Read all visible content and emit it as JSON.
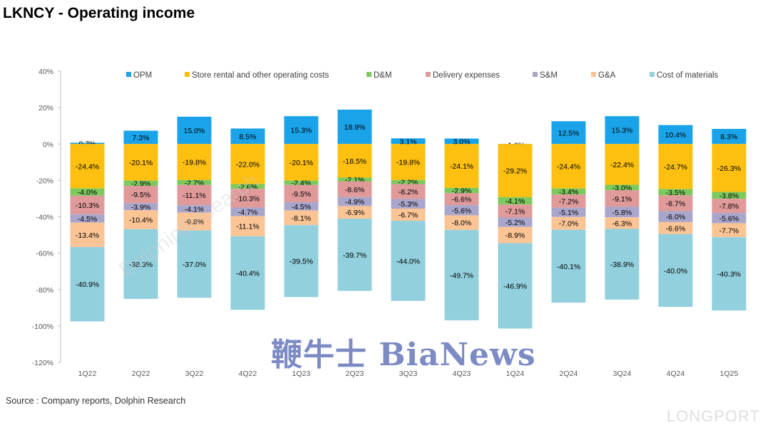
{
  "title": "LKNCY - Operating income",
  "source": "Source : Company reports, Dolphin Research",
  "watermarks": {
    "bianews": "鞭牛士 BiaNews",
    "dolphin": "DolphinResearch",
    "longport": "LONGPORT"
  },
  "chart_data": {
    "type": "bar",
    "stacked": true,
    "categories": [
      "1Q22",
      "2Q22",
      "3Q22",
      "4Q22",
      "1Q23",
      "2Q23",
      "3Q23",
      "4Q23",
      "1Q24",
      "2Q24",
      "3Q24",
      "4Q24",
      "1Q25"
    ],
    "ylim": [
      -120,
      40
    ],
    "yticks": [
      40,
      20,
      0,
      -20,
      -40,
      -60,
      -80,
      -100,
      -120
    ],
    "ytick_labels": [
      "40%",
      "20%",
      "0%",
      "-20%",
      "-40%",
      "-60%",
      "-80%",
      "-100%",
      "-120%"
    ],
    "legend_position": "top",
    "series": [
      {
        "name": "OPM",
        "color": "#1aa3e8",
        "values": [
          0.7,
          7.3,
          15.0,
          8.5,
          15.3,
          18.9,
          3.1,
          3.0,
          -1.0,
          12.5,
          15.3,
          10.4,
          8.3
        ],
        "labels": [
          "0.7%",
          "7.3%",
          "15.0%",
          "8.5%",
          "15.3%",
          "18.9%",
          "3.1%",
          "3.0%",
          "-1.0%",
          "12.5%",
          "15.3%",
          "10.4%",
          "8.3%"
        ]
      },
      {
        "name": "Store rental and other operating costs",
        "color": "#fdc010",
        "values": [
          -24.4,
          -20.1,
          -19.8,
          -22.0,
          -20.1,
          -18.5,
          -19.8,
          -24.1,
          -29.2,
          -24.4,
          -22.4,
          -24.7,
          -26.3
        ],
        "labels": [
          "-24.4%",
          "-20.1%",
          "-19.8%",
          "-22.0%",
          "-20.1%",
          "-18.5%",
          "-19.8%",
          "-24.1%",
          "-29.2%",
          "-24.4%",
          "-22.4%",
          "-24.7%",
          "-26.3%"
        ]
      },
      {
        "name": "D&M",
        "color": "#7dc95e",
        "values": [
          -4.0,
          -2.9,
          -2.7,
          -2.6,
          -2.4,
          -2.1,
          -2.2,
          -2.9,
          -4.1,
          -3.4,
          -3.0,
          -3.5,
          -3.8
        ],
        "labels": [
          "-4.0%",
          "-2.9%",
          "-2.7%",
          "-2.6%",
          "-2.4%",
          "-2.1%",
          "-2.2%",
          "-2.9%",
          "-4.1%",
          "-3.4%",
          "-3.0%",
          "-3.5%",
          "-3.8%"
        ]
      },
      {
        "name": "Delivery expenses",
        "color": "#e09a9a",
        "values": [
          -10.3,
          -9.5,
          -11.1,
          -10.3,
          -9.5,
          -8.6,
          -8.2,
          -6.6,
          -7.1,
          -7.2,
          -9.1,
          -8.7,
          -7.8
        ],
        "labels": [
          "-10.3%",
          "-9.5%",
          "-11.1%",
          "-10.3%",
          "-9.5%",
          "-8.6%",
          "-8.2%",
          "-6.6%",
          "-7.1%",
          "-7.2%",
          "-9.1%",
          "-8.7%",
          "-7.8%"
        ]
      },
      {
        "name": "S&M",
        "color": "#a9a6cc",
        "values": [
          -4.5,
          -3.9,
          -4.1,
          -4.7,
          -4.5,
          -4.9,
          -5.3,
          -5.6,
          -5.2,
          -5.1,
          -5.8,
          -6.0,
          -5.6
        ],
        "labels": [
          "-4.5%",
          "-3.9%",
          "-4.1%",
          "-4.7%",
          "-4.5%",
          "-4.9%",
          "-5.3%",
          "-5.6%",
          "-5.2%",
          "-5.1%",
          "-5.8%",
          "-6.0%",
          "-5.6%"
        ]
      },
      {
        "name": "G&A",
        "color": "#fbc495",
        "values": [
          -13.4,
          -10.4,
          -9.8,
          -11.1,
          -8.1,
          -6.9,
          -6.7,
          -8.0,
          -8.9,
          -7.0,
          -6.3,
          -6.6,
          -7.7
        ],
        "labels": [
          "-13.4%",
          "-10.4%",
          "-9.8%",
          "-11.1%",
          "-8.1%",
          "-6.9%",
          "-6.7%",
          "-8.0%",
          "-8.9%",
          "-7.0%",
          "-6.3%",
          "-6.6%",
          "-7.7%"
        ]
      },
      {
        "name": "Cost of materials",
        "color": "#92d0de",
        "values": [
          -40.9,
          -38.3,
          -37.0,
          -40.4,
          -39.5,
          -39.7,
          -44.0,
          -49.7,
          -46.9,
          -40.1,
          -38.9,
          -40.0,
          -40.3
        ],
        "labels": [
          "-40.9%",
          "-38.3%",
          "-37.0%",
          "-40.4%",
          "-39.5%",
          "-39.7%",
          "-44.0%",
          "-49.7%",
          "-46.9%",
          "-40.1%",
          "-38.9%",
          "-40.0%",
          "-40.3%"
        ]
      }
    ]
  }
}
